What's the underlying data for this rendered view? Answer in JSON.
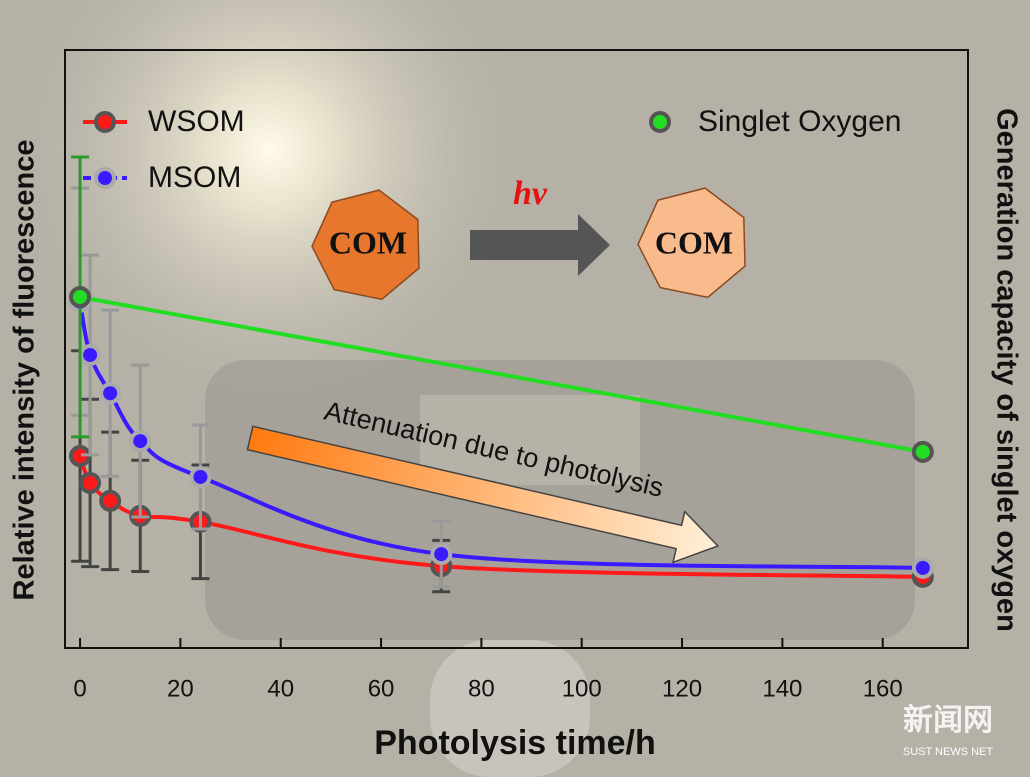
{
  "chart_data": {
    "type": "scatter",
    "xlabel": "Photolysis time/h",
    "ylabel": "Relative intensity of fluorescence",
    "y2label": "Generation capacity of singlet oxygen",
    "xlim": [
      -3,
      177
    ],
    "xticks": [
      0,
      20,
      40,
      60,
      80,
      100,
      120,
      140,
      160
    ],
    "ylim": [
      0,
      100
    ],
    "y2lim": [
      0,
      100
    ],
    "series": [
      {
        "name": "WSOM",
        "color": "#ff1a1a",
        "x": [
          0,
          2,
          6,
          12,
          24,
          72,
          168
        ],
        "values": [
          32.1,
          27.6,
          24.6,
          22.1,
          21.1,
          13.7,
          11.9
        ],
        "errors": [
          17.6,
          14,
          11.5,
          9.3,
          9.5,
          4.3,
          null
        ]
      },
      {
        "name": "MSOM",
        "color": "#3a1aff",
        "x": [
          0,
          2,
          6,
          12,
          24,
          72,
          168
        ],
        "values": [
          57.9,
          49.0,
          42.6,
          34.6,
          28.6,
          15.7,
          13.4
        ],
        "errors": [
          19,
          16.7,
          13.9,
          12.7,
          8.7,
          5.5,
          null
        ]
      },
      {
        "name": "Singlet Oxygen",
        "color": "#22dd22",
        "axis": "y2",
        "x": [
          0,
          168
        ],
        "values": [
          58.7,
          32.8
        ],
        "errors": [
          23.4,
          null
        ]
      }
    ],
    "annotations": [
      "COM",
      "hv",
      "COM",
      "Attenuation due to photolysis"
    ]
  },
  "watermark": {
    "text": "新闻网",
    "subtext": "SUST NEWS NET"
  }
}
